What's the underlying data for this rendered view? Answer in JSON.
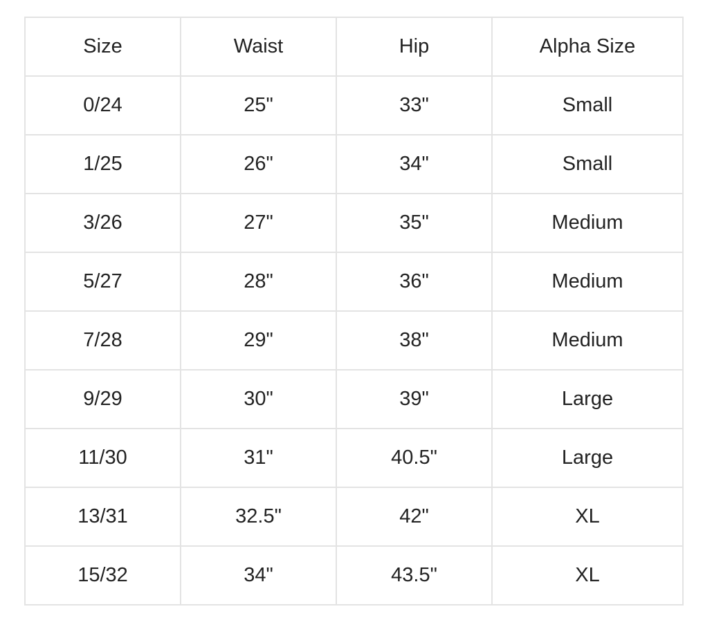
{
  "table": {
    "headers": [
      "Size",
      "Waist",
      "Hip",
      "Alpha Size"
    ],
    "rows": [
      [
        "0/24",
        "25\"",
        "33\"",
        "Small"
      ],
      [
        "1/25",
        "26\"",
        "34\"",
        "Small"
      ],
      [
        "3/26",
        "27\"",
        "35\"",
        "Medium"
      ],
      [
        "5/27",
        "28\"",
        "36\"",
        "Medium"
      ],
      [
        "7/28",
        "29\"",
        "38\"",
        "Medium"
      ],
      [
        "9/29",
        "30\"",
        "39\"",
        "Large"
      ],
      [
        "11/30",
        "31\"",
        "40.5\"",
        "Large"
      ],
      [
        "13/31",
        "32.5\"",
        "42\"",
        "XL"
      ],
      [
        "15/32",
        "34\"",
        "43.5\"",
        "XL"
      ]
    ]
  }
}
